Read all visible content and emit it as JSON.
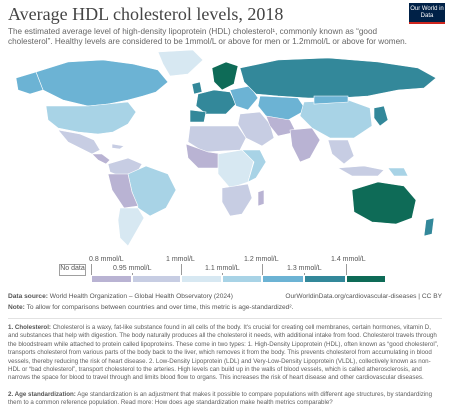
{
  "header": {
    "title": "Average HDL cholesterol levels, 2018",
    "subtitle": "The estimated average level of high-density lipoprotein (HDL) cholesterol¹, commonly known as “good cholesterol”. Healthy levels are considered to be 1mmol/L or above for men or 1.2mmol/L or above for women.",
    "logo_text": "Our World in Data"
  },
  "legend": {
    "no_data": "No data",
    "labels": [
      "0.8 mmol/L",
      "0.95 mmol/L",
      "1 mmol/L",
      "1.1 mmol/L",
      "1.2 mmol/L",
      "1.3 mmol/L",
      "1.4 mmol/L"
    ],
    "bins": [
      0.8,
      0.95,
      1.0,
      1.1,
      1.2,
      1.3,
      1.4
    ],
    "colors": [
      "#b9b3d3",
      "#c7cde3",
      "#d7e8f2",
      "#a8d3e6",
      "#6cb3d4",
      "#33889a",
      "#0e6b57"
    ]
  },
  "footer": {
    "source_label": "Data source:",
    "source_text": "World Health Organization – Global Health Observatory (2024)",
    "url_text": "OurWorldinData.org/cardiovascular-diseases | CC BY",
    "note_label": "Note:",
    "note_text": "To allow for comparisons between countries and over time, this metric is age-standardized².",
    "fn1_label": "1. Cholesterol:",
    "fn1_text": "Cholesterol is a waxy, fat-like substance found in all cells of the body. It's crucial for creating cell membranes, certain hormones, vitamin D, and substances that help with digestion. The body naturally produces all the cholesterol it needs, with additional intake from food. Cholesterol travels through the bloodstream while attached to protein called lipoproteins. These come in two types: 1. High-Density Lipoprotein (HDL), often known as “good cholesterol”, transports cholesterol from various parts of the body back to the liver, which removes it from the body. This prevents cholesterol from accumulating in blood vessels, thereby reducing the risk of heart disease. 2. Low-Density Lipoprotein (LDL) and Very-Low-Density Lipoprotein (VLDL), collectively known as non-HDL or “bad cholesterol”, transport cholesterol to the arteries. High levels can build up in the walls of blood vessels, which is called atherosclerosis, and narrows the space for blood to travel through and limits blood flow to organs. This increases the risk of heart disease and other cardiovascular diseases.",
    "fn2_label": "2. Age standardization:",
    "fn2_text": "Age standardization is an adjustment that makes it possible to compare populations with different age structures, by standardizing them to a common reference population.",
    "fn2_readmore": "Read more: How does age standardization make health metrics comparable?"
  }
}
